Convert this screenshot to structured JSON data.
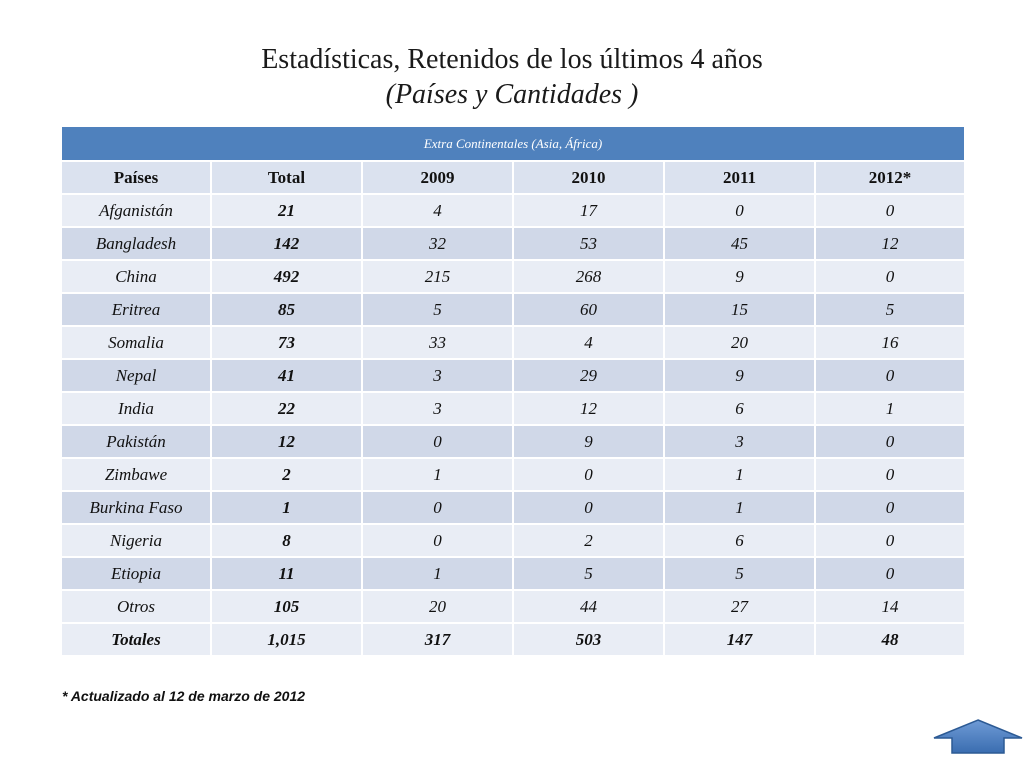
{
  "title": {
    "line1": "Estadísticas,  Retenidos de los últimos 4 años",
    "line2": "(Países y Cantidades )"
  },
  "table": {
    "banner": "Extra Continentales   (Asia, África)",
    "headers": [
      "Países",
      "Total",
      "2009",
      "2010",
      "2011",
      "2012*"
    ],
    "rows": [
      {
        "country": "Afganistán",
        "total": "21",
        "y2009": "4",
        "y2010": "17",
        "y2011": "0",
        "y2012": "0"
      },
      {
        "country": "Bangladesh",
        "total": "142",
        "y2009": "32",
        "y2010": "53",
        "y2011": "45",
        "y2012": "12"
      },
      {
        "country": "China",
        "total": "492",
        "y2009": "215",
        "y2010": "268",
        "y2011": "9",
        "y2012": "0"
      },
      {
        "country": "Eritrea",
        "total": "85",
        "y2009": "5",
        "y2010": "60",
        "y2011": "15",
        "y2012": "5"
      },
      {
        "country": "Somalia",
        "total": "73",
        "y2009": "33",
        "y2010": "4",
        "y2011": "20",
        "y2012": "16"
      },
      {
        "country": "Nepal",
        "total": "41",
        "y2009": "3",
        "y2010": "29",
        "y2011": "9",
        "y2012": "0"
      },
      {
        "country": "India",
        "total": "22",
        "y2009": "3",
        "y2010": "12",
        "y2011": "6",
        "y2012": "1"
      },
      {
        "country": "Pakistán",
        "total": "12",
        "y2009": "0",
        "y2010": "9",
        "y2011": "3",
        "y2012": "0"
      },
      {
        "country": "Zimbawe",
        "total": "2",
        "y2009": "1",
        "y2010": "0",
        "y2011": "1",
        "y2012": "0"
      },
      {
        "country": "Burkina Faso",
        "total": "1",
        "y2009": "0",
        "y2010": "0",
        "y2011": "1",
        "y2012": "0"
      },
      {
        "country": "Nigeria",
        "total": "8",
        "y2009": "0",
        "y2010": "2",
        "y2011": "6",
        "y2012": "0"
      },
      {
        "country": "Etiopia",
        "total": "11",
        "y2009": "1",
        "y2010": "5",
        "y2011": "5",
        "y2012": "0"
      },
      {
        "country": "Otros",
        "total": "105",
        "y2009": "20",
        "y2010": "44",
        "y2011": "27",
        "y2012": "14"
      }
    ],
    "totals": {
      "label": "Totales",
      "total": "1,015",
      "y2009": "317",
      "y2010": "503",
      "y2011": "147",
      "y2012": "48"
    }
  },
  "footnote": "*  Actualizado al 12 de marzo de 2012",
  "nav": {
    "up_arrow_icon": "up-arrow-icon"
  },
  "colors": {
    "banner": "#4f81bd",
    "header_bg": "#dbe2ef",
    "row_light": "#e9edf5",
    "row_dark": "#d0d8e8",
    "arrow_fill": "#4f81bd"
  }
}
